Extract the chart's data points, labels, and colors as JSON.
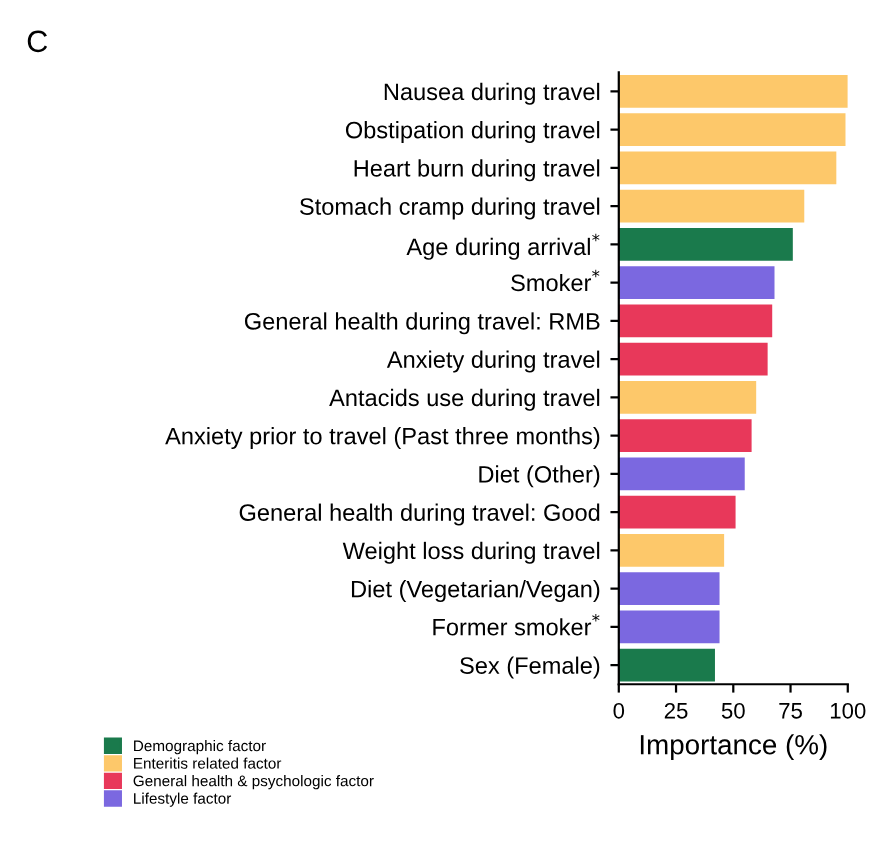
{
  "chart_data": {
    "type": "bar",
    "orientation": "horizontal",
    "xlabel": "Importance (%)",
    "annotations": [
      "C"
    ],
    "categories": [
      "Nausea during travel",
      "Obstipation during travel",
      "Heart burn during travel",
      "Stomach cramp during travel",
      "Age during arrival$^{*}$",
      "Smoker$^{*}$",
      "General health during travel: RMB",
      "Anxiety during travel",
      "Antacids use during travel",
      "Anxiety prior to travel (Past three months)",
      "Diet (Other)",
      "General health during travel: Good",
      "Weight loss during travel",
      "Diet (Vegetarian/Vegan)",
      "Former smoker$^{*}$",
      "Sex (Female)"
    ],
    "series": [
      {
        "name": "Demographic factor",
        "color": "#1a7a4c",
        "values": [
          null,
          null,
          null,
          null,
          76,
          null,
          null,
          null,
          null,
          null,
          null,
          null,
          null,
          null,
          null,
          42
        ]
      },
      {
        "name": "Enteritis related factor",
        "color": "#fdc86a",
        "values": [
          100,
          99,
          95,
          81,
          null,
          null,
          null,
          null,
          60,
          null,
          null,
          null,
          46,
          null,
          null,
          null
        ]
      },
      {
        "name": "General health & psychologic factor",
        "color": "#e8385a",
        "values": [
          null,
          null,
          null,
          null,
          null,
          null,
          67,
          65,
          null,
          58,
          null,
          51,
          null,
          null,
          null,
          null
        ]
      },
      {
        "name": "Lifestyle factor",
        "color": "#7b68e0",
        "values": [
          null,
          null,
          null,
          null,
          null,
          68,
          null,
          null,
          null,
          null,
          55,
          null,
          null,
          44,
          44,
          null
        ]
      }
    ],
    "xlim": [
      0,
      100
    ],
    "xticks": [
      0,
      25,
      50,
      75,
      100
    ],
    "grid": false,
    "legend": "bottom left"
  }
}
